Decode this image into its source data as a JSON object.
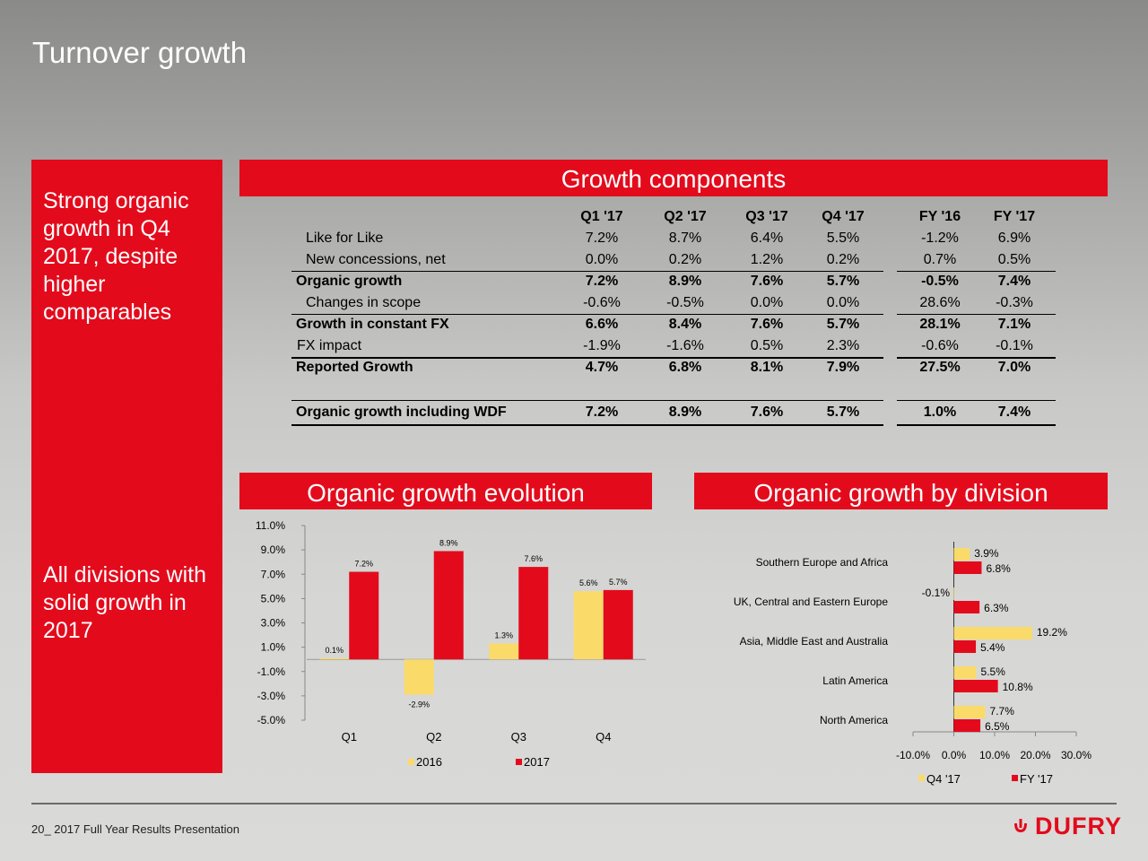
{
  "page_title": "Turnover growth",
  "left_panel": {
    "text_top": [
      "Strong organic",
      "growth in Q4",
      "2017, despite",
      "higher",
      "comparables"
    ],
    "text_bottom": [
      "All divisions with",
      "solid growth in",
      "2017"
    ]
  },
  "growth_components": {
    "title": "Growth components",
    "columns": [
      "Q1 '17",
      "Q2 '17",
      "Q3 '17",
      "Q4 '17",
      "FY '16",
      "FY '17"
    ],
    "rows": [
      {
        "label": "Like for Like",
        "values": [
          "7.2%",
          "8.7%",
          "6.4%",
          "5.5%",
          "-1.2%",
          "6.9%"
        ]
      },
      {
        "label": "New concessions, net",
        "values": [
          "0.0%",
          "0.2%",
          "1.2%",
          "0.2%",
          "0.7%",
          "0.5%"
        ]
      },
      {
        "label": "Organic growth",
        "values": [
          "7.2%",
          "8.9%",
          "7.6%",
          "5.7%",
          "-0.5%",
          "7.4%"
        ]
      },
      {
        "label": "Changes in scope",
        "values": [
          "-0.6%",
          "-0.5%",
          "0.0%",
          "0.0%",
          "28.6%",
          "-0.3%"
        ]
      },
      {
        "label": "Growth in constant FX",
        "values": [
          "6.6%",
          "8.4%",
          "7.6%",
          "5.7%",
          "28.1%",
          "7.1%"
        ]
      },
      {
        "label": "FX impact",
        "values": [
          "-1.9%",
          "-1.6%",
          "0.5%",
          "2.3%",
          "-0.6%",
          "-0.1%"
        ]
      },
      {
        "label": "Reported Growth",
        "values": [
          "4.7%",
          "6.8%",
          "8.1%",
          "7.9%",
          "27.5%",
          "7.0%"
        ]
      },
      {
        "label": "Organic growth including WDF",
        "values": [
          "7.2%",
          "8.9%",
          "7.6%",
          "5.7%",
          "1.0%",
          "7.4%"
        ]
      }
    ]
  },
  "footer": {
    "text": "20_ 2017  Full Year Results Presentation",
    "logo": "DUFRY"
  },
  "colors": {
    "red": "#e30a1c",
    "yellow": "#fadb6a"
  },
  "chart_data": [
    {
      "type": "bar",
      "title": "Organic growth evolution",
      "categories": [
        "Q1",
        "Q2",
        "Q3",
        "Q4"
      ],
      "series": [
        {
          "name": "2016",
          "values": [
            0.1,
            -2.9,
            1.3,
            5.6
          ],
          "labels": [
            "0.1%",
            "-2.9%",
            "1.3%",
            "5.6%"
          ],
          "color": "#fadb6a"
        },
        {
          "name": "2017",
          "values": [
            7.2,
            8.9,
            7.6,
            5.7
          ],
          "labels": [
            "7.2%",
            "8.9%",
            "7.6%",
            "5.7%"
          ],
          "color": "#e30a1c"
        }
      ],
      "ylim": [
        -5.0,
        11.0
      ],
      "yticks": [
        "11.0%",
        "9.0%",
        "7.0%",
        "5.0%",
        "3.0%",
        "1.0%",
        "-1.0%",
        "-3.0%",
        "-5.0%"
      ],
      "legend": "bottom"
    },
    {
      "type": "bar",
      "orientation": "horizontal",
      "title": "Organic growth by division",
      "categories": [
        "Southern Europe and Africa",
        "UK, Central and Eastern Europe",
        "Asia, Middle East and Australia",
        "Latin America",
        "North America"
      ],
      "series": [
        {
          "name": "Q4 '17",
          "values": [
            3.9,
            -0.1,
            19.2,
            5.5,
            7.7
          ],
          "labels": [
            "3.9%",
            "-0.1%",
            "19.2%",
            "5.5%",
            "7.7%"
          ],
          "color": "#fadb6a"
        },
        {
          "name": "FY '17",
          "values": [
            6.8,
            6.3,
            5.4,
            10.8,
            6.5
          ],
          "labels": [
            "6.8%",
            "6.3%",
            "5.4%",
            "10.8%",
            "6.5%"
          ],
          "color": "#e30a1c"
        }
      ],
      "xlim": [
        -10.0,
        30.0
      ],
      "xticks": [
        "-10.0%",
        "0.0%",
        "10.0%",
        "20.0%",
        "30.0%"
      ],
      "legend": "bottom"
    }
  ]
}
